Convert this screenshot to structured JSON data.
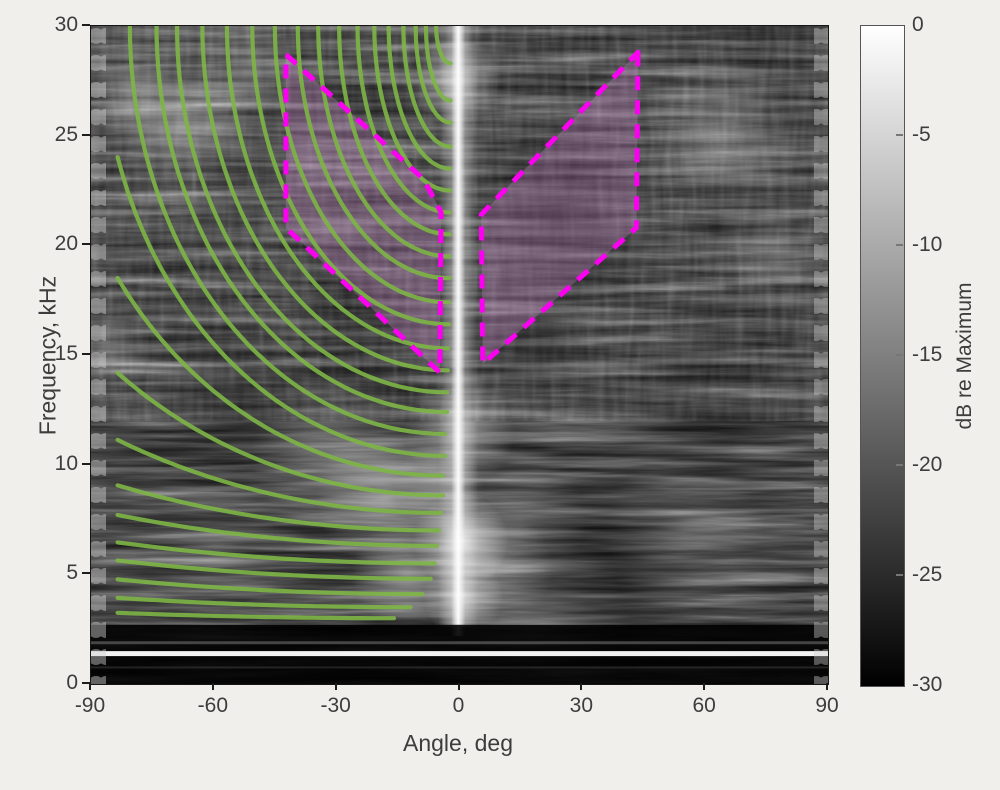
{
  "figure": {
    "background": "#f1efeb",
    "text_color": "#3d3d3d",
    "style": "MATLAB-like figure: grayscale angle-frequency intensity map with overlay annotations"
  },
  "chart_data": {
    "type": "heatmap",
    "title": "",
    "xlabel": "Angle, deg",
    "ylabel": "Frequency, kHz",
    "xlim": [
      -90,
      90
    ],
    "ylim": [
      0,
      30
    ],
    "xticks": [
      -90,
      -60,
      -30,
      0,
      30,
      60,
      90
    ],
    "yticks": [
      0,
      5,
      10,
      15,
      20,
      25,
      30
    ],
    "grid": false,
    "colorbar": {
      "label": "dB re Maximum",
      "ticks": [
        0,
        -5,
        -10,
        -15,
        -20,
        -25,
        -30
      ],
      "max": 0,
      "min": -30,
      "colormap": "gray (white = 0 dB at top, black = -30 dB at bottom)"
    },
    "heatmap": {
      "description": "noisy grayscale beam-pattern/spectrogram: bright vertical stripe at 0 deg, bright horizontal band near 1.5 kHz across all angles, mottled interference texture strongest on the left half and far right column, dark below 2.5 kHz",
      "bright_vertical_stripe_deg": 0,
      "bright_horizontal_band_kHz": 1.5
    },
    "overlays": {
      "green_curves": {
        "color": "#7db546",
        "line_width": 4.2,
        "style": "solid",
        "comment": "family of nested dispersion-like arcs on the negative-angle half; each arc modeled as ellipse quadrant theta(t)=theta_end-A*cos(t), f(t)=30-(30-f_end)*sin(t), clipped to theta >= -83.5 deg and f <= 30 kHz",
        "theta_clip_deg": -83.5,
        "f_top_kHz": 30,
        "curves_f_end_thetaEnd_A": [
          [
            3.0,
            -16,
            500
          ],
          [
            3.5,
            -12,
            400
          ],
          [
            4.1,
            -9,
            330
          ],
          [
            4.8,
            -7,
            300
          ],
          [
            5.5,
            -6,
            280
          ],
          [
            6.3,
            -5.5,
            230
          ],
          [
            7.0,
            -5,
            190
          ],
          [
            7.8,
            -4.5,
            150
          ],
          [
            8.6,
            -4,
            118
          ],
          [
            9.5,
            -4,
            96
          ],
          [
            10.4,
            -3.5,
            84
          ],
          [
            11.4,
            -3.5,
            77
          ],
          [
            12.4,
            -3,
            71
          ],
          [
            13.3,
            -3,
            66
          ],
          [
            14.3,
            -2.8,
            60
          ],
          [
            15.3,
            -2.8,
            54
          ],
          [
            16.4,
            -2.6,
            48
          ],
          [
            17.4,
            -2.6,
            42.5
          ],
          [
            18.5,
            -2.5,
            37
          ],
          [
            19.5,
            -2.5,
            32
          ],
          [
            20.5,
            -2.4,
            27
          ],
          [
            21.5,
            -2.4,
            22.5
          ],
          [
            22.5,
            -2.3,
            18.5
          ],
          [
            23.5,
            -2.3,
            15
          ],
          [
            24.5,
            -2.2,
            11.5
          ],
          [
            25.6,
            -2.2,
            8.5
          ],
          [
            26.6,
            -2.2,
            6
          ],
          [
            28.3,
            -2.2,
            3.5
          ]
        ]
      },
      "magenta_regions": {
        "stroke": "#fb00f1",
        "stroke_width": 5,
        "style": "dashed",
        "fill": "rgba(215,140,215,0.28)",
        "left_polygon_deg_kHz": [
          [
            -42.4,
            28.7
          ],
          [
            -8.7,
            23.0
          ],
          [
            -4.5,
            21.5
          ],
          [
            -4.8,
            14.2
          ],
          [
            -42.4,
            20.8
          ]
        ],
        "right_polygon_deg_kHz": [
          [
            43.6,
            28.8
          ],
          [
            43.2,
            20.8
          ],
          [
            5.7,
            14.6
          ],
          [
            5.3,
            21.4
          ],
          [
            8.9,
            22.1
          ]
        ]
      }
    }
  }
}
